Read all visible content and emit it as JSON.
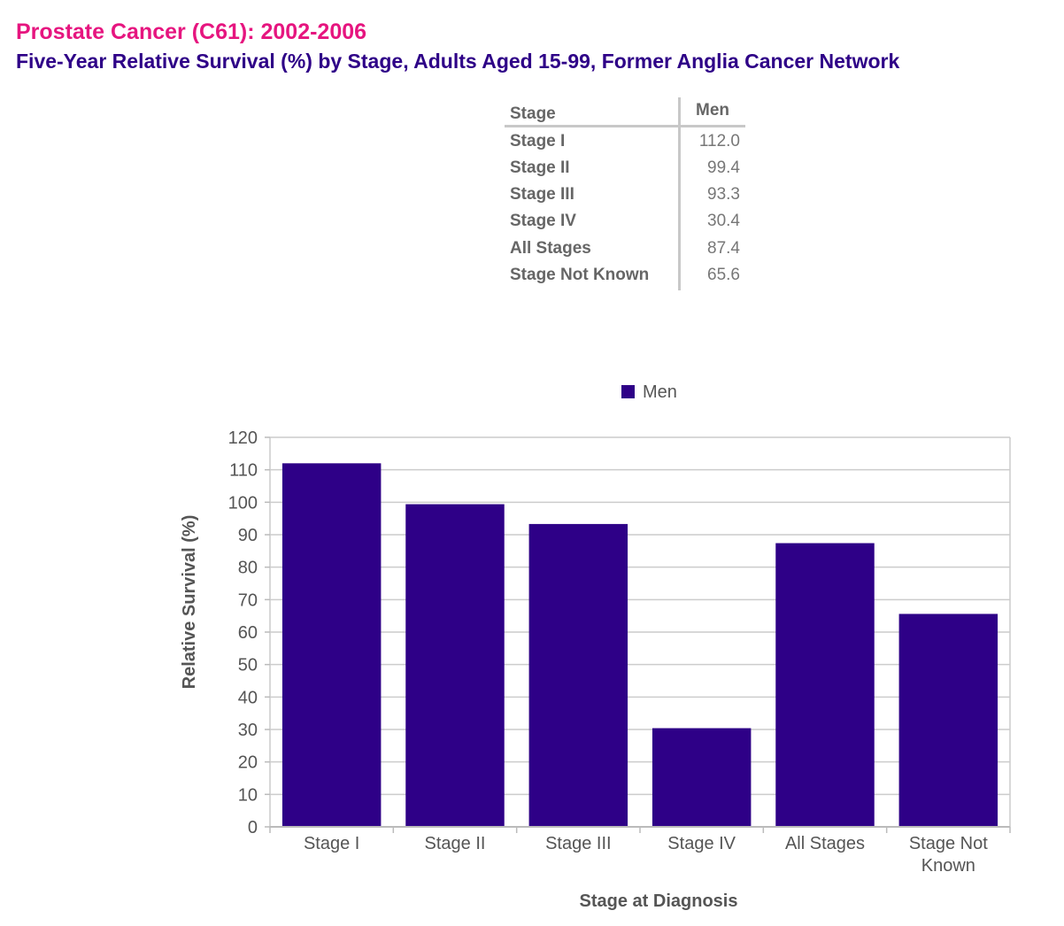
{
  "title": "Prostate Cancer (C61): 2002-2006",
  "subtitle": "Five-Year Relative Survival (%) by Stage, Adults Aged 15-99, Former Anglia Cancer Network",
  "table": {
    "header_stage": "Stage",
    "header_men": "Men",
    "rows": [
      {
        "stage": "Stage I",
        "men": "112.0"
      },
      {
        "stage": "Stage II",
        "men": "99.4"
      },
      {
        "stage": "Stage III",
        "men": "93.3"
      },
      {
        "stage": "Stage IV",
        "men": "30.4"
      },
      {
        "stage": "All Stages",
        "men": "87.4"
      },
      {
        "stage": "Stage Not Known",
        "men": "65.6"
      }
    ]
  },
  "colors": {
    "title": "#e6157f",
    "subtitle": "#2e0087",
    "bar": "#2e0087",
    "grid": "#cccccc"
  },
  "chart_data": {
    "type": "bar",
    "categories": [
      "Stage I",
      "Stage II",
      "Stage III",
      "Stage IV",
      "All Stages",
      "Stage Not Known"
    ],
    "category_lines": [
      [
        "Stage I"
      ],
      [
        "Stage II"
      ],
      [
        "Stage III"
      ],
      [
        "Stage IV"
      ],
      [
        "All Stages"
      ],
      [
        "Stage Not",
        "Known"
      ]
    ],
    "series": [
      {
        "name": "Men",
        "values": [
          112.0,
          99.4,
          93.3,
          30.4,
          87.4,
          65.6
        ]
      }
    ],
    "xlabel": "Stage at Diagnosis",
    "ylabel": "Relative Survival (%)",
    "ylim": [
      0,
      120
    ],
    "yticks": [
      0,
      10,
      20,
      30,
      40,
      50,
      60,
      70,
      80,
      90,
      100,
      110,
      120
    ],
    "legend": "top",
    "grid": true
  }
}
